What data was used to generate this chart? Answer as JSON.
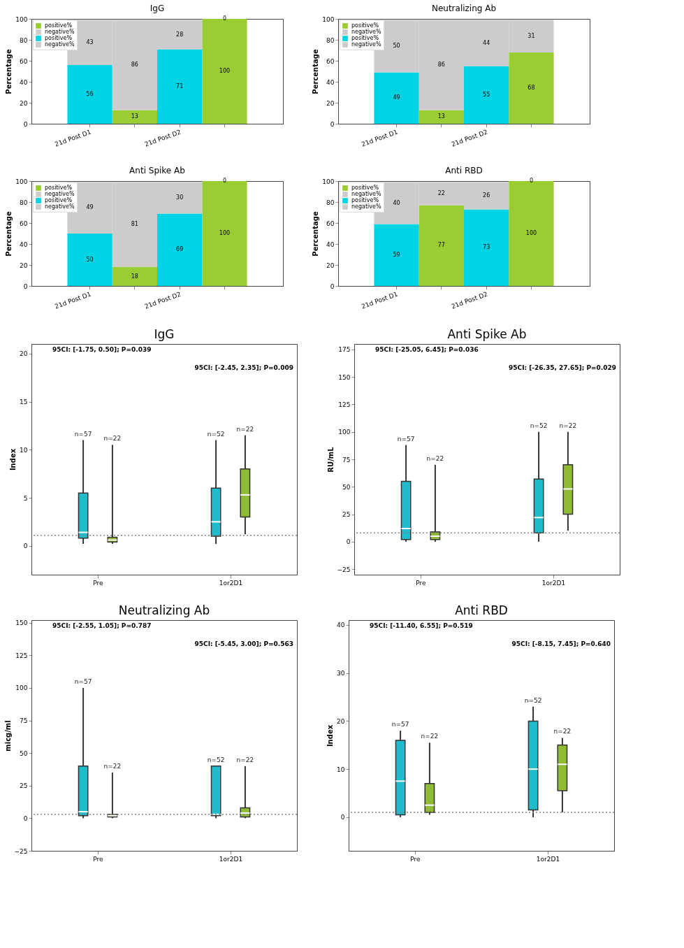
{
  "chart_data": [
    {
      "type": "bar",
      "title": "IgG",
      "ylabel": "Percentage",
      "categories": [
        "21d Post D1",
        null,
        "21d Post D2",
        null
      ],
      "stacked": true,
      "data_labels": true,
      "legend": "top left",
      "ylim": [
        0,
        100
      ],
      "yticks": [
        0,
        20,
        40,
        60,
        80,
        100
      ],
      "series": [
        {
          "name": "positive%",
          "color": "#9acd32",
          "values": [
            null,
            13,
            null,
            100
          ]
        },
        {
          "name": "negative%",
          "color": "#cccccc",
          "values": [
            null,
            86,
            null,
            0
          ]
        },
        {
          "name": "positive%",
          "color": "#00d4e4",
          "values": [
            56,
            null,
            71,
            null
          ]
        },
        {
          "name": "negative%",
          "color": "#cccccc",
          "values": [
            43,
            null,
            28,
            null
          ]
        }
      ]
    },
    {
      "type": "bar",
      "title": "Neutralizing Ab",
      "ylabel": "Percentage",
      "categories": [
        "21d Post D1",
        null,
        "21d Post D2",
        null
      ],
      "stacked": true,
      "data_labels": true,
      "legend": "top left",
      "ylim": [
        0,
        100
      ],
      "yticks": [
        0,
        20,
        40,
        60,
        80,
        100
      ],
      "series": [
        {
          "name": "positive%",
          "color": "#9acd32",
          "values": [
            null,
            13,
            null,
            68
          ]
        },
        {
          "name": "negative%",
          "color": "#cccccc",
          "values": [
            null,
            86,
            null,
            31
          ]
        },
        {
          "name": "positive%",
          "color": "#00d4e4",
          "values": [
            49,
            null,
            55,
            null
          ]
        },
        {
          "name": "negative%",
          "color": "#cccccc",
          "values": [
            50,
            null,
            44,
            null
          ]
        }
      ]
    },
    {
      "type": "bar",
      "title": "Anti Spike Ab",
      "ylabel": "Percentage",
      "categories": [
        "21d Post D1",
        null,
        "21d Post D2",
        null
      ],
      "stacked": true,
      "data_labels": true,
      "legend": "top left",
      "ylim": [
        0,
        100
      ],
      "yticks": [
        0,
        20,
        40,
        60,
        80,
        100
      ],
      "series": [
        {
          "name": "positive%",
          "color": "#9acd32",
          "values": [
            null,
            18,
            null,
            100
          ]
        },
        {
          "name": "negative%",
          "color": "#cccccc",
          "values": [
            null,
            81,
            null,
            0
          ]
        },
        {
          "name": "positive%",
          "color": "#00d4e4",
          "values": [
            50,
            null,
            69,
            null
          ]
        },
        {
          "name": "negative%",
          "color": "#cccccc",
          "values": [
            49,
            null,
            30,
            null
          ]
        }
      ]
    },
    {
      "type": "bar",
      "title": "Anti RBD",
      "ylabel": "Percentage",
      "categories": [
        "21d Post D1",
        null,
        "21d Post D2",
        null
      ],
      "stacked": true,
      "data_labels": true,
      "legend": "top left",
      "ylim": [
        0,
        100
      ],
      "yticks": [
        0,
        20,
        40,
        60,
        80,
        100
      ],
      "series": [
        {
          "name": "positive%",
          "color": "#9acd32",
          "values": [
            null,
            77,
            null,
            100
          ]
        },
        {
          "name": "negative%",
          "color": "#cccccc",
          "values": [
            null,
            22,
            null,
            0
          ]
        },
        {
          "name": "positive%",
          "color": "#00d4e4",
          "values": [
            59,
            null,
            73,
            null
          ]
        },
        {
          "name": "negative%",
          "color": "#cccccc",
          "values": [
            40,
            null,
            26,
            null
          ]
        }
      ]
    },
    {
      "type": "box",
      "title": "IgG",
      "ylabel": "Index",
      "categories": [
        "Pre",
        "1or2D1"
      ],
      "ylim": [
        -3,
        21
      ],
      "yticks": [
        0,
        5,
        10,
        15,
        20
      ],
      "annotations": [
        "95CI: [-1.75, 0.50]; P=0.039",
        "95CI: [-2.45, 2.35]; P=0.009",
        "n=57",
        "n=22",
        "n=52",
        "n=22"
      ],
      "ref_lines": [
        {
          "axis": "y",
          "value": 1.1,
          "color": "#808080",
          "line_style": "dotted"
        }
      ],
      "series": [
        {
          "color": "#20bccc",
          "boxes": [
            {
              "low": 0.2,
              "q1": 0.8,
              "median": 1.4,
              "q3": 5.5,
              "high": 11
            },
            {
              "low": 0.2,
              "q1": 1,
              "median": 2.5,
              "q3": 6,
              "high": 11
            }
          ]
        },
        {
          "color": "#8fbc34",
          "boxes": [
            {
              "low": 0.2,
              "q1": 0.4,
              "median": 0.6,
              "q3": 0.9,
              "high": 10.5
            },
            {
              "low": 1.2,
              "q1": 3,
              "median": 5.3,
              "q3": 8,
              "high": 11.5
            }
          ]
        }
      ]
    },
    {
      "type": "box",
      "title": "Anti Spike Ab",
      "ylabel": "RU/mL",
      "categories": [
        "Pre",
        "1or2D1"
      ],
      "ylim": [
        -30,
        180
      ],
      "yticks": [
        -25,
        0,
        25,
        50,
        75,
        100,
        125,
        150,
        175
      ],
      "annotations": [
        "95CI: [-25.05, 6.45]; P=0.036",
        "95CI: [-26.35, 27.65]; P=0.029",
        "n=57",
        "n=22",
        "n=52",
        "n=22"
      ],
      "ref_lines": [
        {
          "axis": "y",
          "value": 8,
          "color": "#808080",
          "line_style": "dotted"
        }
      ],
      "series": [
        {
          "color": "#20bccc",
          "boxes": [
            {
              "low": 0,
              "q1": 2,
              "median": 12,
              "q3": 55,
              "high": 88
            },
            {
              "low": 0,
              "q1": 8,
              "median": 22,
              "q3": 57,
              "high": 100
            }
          ]
        },
        {
          "color": "#8fbc34",
          "boxes": [
            {
              "low": 0,
              "q1": 2,
              "median": 5,
              "q3": 9,
              "high": 70
            },
            {
              "low": 10,
              "q1": 25,
              "median": 48,
              "q3": 70,
              "high": 100
            }
          ]
        }
      ]
    },
    {
      "type": "box",
      "title": "Neutralizing Ab",
      "ylabel": "micg/ml",
      "categories": [
        "Pre",
        "1or2D1"
      ],
      "ylim": [
        -25,
        152
      ],
      "yticks": [
        -25,
        0,
        25,
        50,
        75,
        100,
        125,
        150
      ],
      "annotations": [
        "95CI: [-2.55, 1.05]; P=0.787",
        "95CI: [-5.45, 3.00]; P=0.563",
        "n=57",
        "n=22",
        "n=52",
        "n=22"
      ],
      "ref_lines": [
        {
          "axis": "y",
          "value": 3,
          "color": "#808080",
          "line_style": "dotted"
        }
      ],
      "series": [
        {
          "color": "#20bccc",
          "boxes": [
            {
              "low": 0,
              "q1": 2,
              "median": 5,
              "q3": 40,
              "high": 100
            },
            {
              "low": 0,
              "q1": 2,
              "median": 3,
              "q3": 40,
              "high": 40
            }
          ]
        },
        {
          "color": "#8fbc34",
          "boxes": [
            {
              "low": 0,
              "q1": 1,
              "median": 2,
              "q3": 3,
              "high": 35
            },
            {
              "low": 0,
              "q1": 1,
              "median": 4,
              "q3": 8,
              "high": 40
            }
          ]
        }
      ]
    },
    {
      "type": "box",
      "title": "Anti RBD",
      "ylabel": "Index",
      "categories": [
        "Pre",
        "1or2D1"
      ],
      "ylim": [
        -7,
        41
      ],
      "yticks": [
        0,
        10,
        20,
        30,
        40
      ],
      "annotations": [
        "95CI: [-11.40, 6.55]; P=0.519",
        "95CI: [-8.15, 7.45]; P=0.640",
        "n=57",
        "n=22",
        "n=52",
        "n=22"
      ],
      "ref_lines": [
        {
          "axis": "y",
          "value": 1,
          "color": "#808080",
          "line_style": "dotted"
        }
      ],
      "series": [
        {
          "color": "#20bccc",
          "boxes": [
            {
              "low": 0,
              "q1": 0.5,
              "median": 7.5,
              "q3": 16,
              "high": 18
            },
            {
              "low": 0,
              "q1": 1.5,
              "median": 10,
              "q3": 20,
              "high": 23
            }
          ]
        },
        {
          "color": "#8fbc34",
          "boxes": [
            {
              "low": 0.5,
              "q1": 1,
              "median": 2.5,
              "q3": 7,
              "high": 15.5
            },
            {
              "low": 1,
              "q1": 5.5,
              "median": 11,
              "q3": 15,
              "high": 16.5
            }
          ]
        }
      ]
    }
  ]
}
